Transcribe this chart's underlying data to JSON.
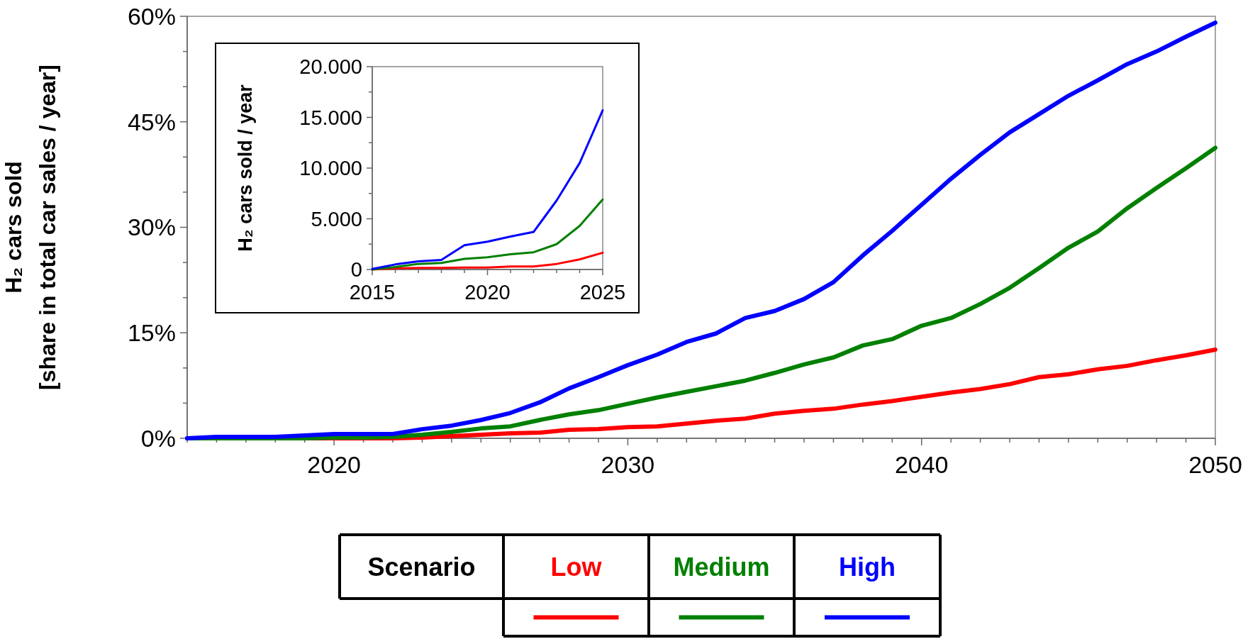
{
  "chart_data": [
    {
      "type": "line",
      "ylabel": "H₂ cars sold\n[share in total car sales / year]",
      "legend_title": "Scenario",
      "legend": "bottom",
      "x": [
        2015,
        2016,
        2017,
        2018,
        2019,
        2020,
        2021,
        2022,
        2023,
        2024,
        2025,
        2026,
        2027,
        2028,
        2029,
        2030,
        2031,
        2032,
        2033,
        2034,
        2035,
        2036,
        2037,
        2038,
        2039,
        2040,
        2041,
        2042,
        2043,
        2044,
        2045,
        2046,
        2047,
        2048,
        2049,
        2050
      ],
      "xlim": [
        2015,
        2050
      ],
      "xticks": [
        {
          "value": 2015,
          "label": null
        },
        {
          "value": 2016,
          "label": null
        },
        {
          "value": 2017,
          "label": null
        },
        {
          "value": 2018,
          "label": null
        },
        {
          "value": 2019,
          "label": null
        },
        2020,
        {
          "value": 2021,
          "label": null
        },
        {
          "value": 2022,
          "label": null
        },
        {
          "value": 2023,
          "label": null
        },
        {
          "value": 2024,
          "label": null
        },
        {
          "value": 2025,
          "label": null
        },
        {
          "value": 2026,
          "label": null
        },
        {
          "value": 2027,
          "label": null
        },
        {
          "value": 2028,
          "label": null
        },
        {
          "value": 2029,
          "label": null
        },
        2030,
        {
          "value": 2031,
          "label": null
        },
        {
          "value": 2032,
          "label": null
        },
        {
          "value": 2033,
          "label": null
        },
        {
          "value": 2034,
          "label": null
        },
        {
          "value": 2035,
          "label": null
        },
        {
          "value": 2036,
          "label": null
        },
        {
          "value": 2037,
          "label": null
        },
        {
          "value": 2038,
          "label": null
        },
        {
          "value": 2039,
          "label": null
        },
        2040,
        {
          "value": 2041,
          "label": null
        },
        {
          "value": 2042,
          "label": null
        },
        {
          "value": 2043,
          "label": null
        },
        {
          "value": 2044,
          "label": null
        },
        {
          "value": 2045,
          "label": null
        },
        {
          "value": 2046,
          "label": null
        },
        {
          "value": 2047,
          "label": null
        },
        {
          "value": 2048,
          "label": null
        },
        {
          "value": 2049,
          "label": null
        },
        2050
      ],
      "ylim": [
        0,
        60
      ],
      "yticks": [
        {
          "value": 0,
          "label": "0%"
        },
        {
          "value": 5,
          "label": null
        },
        {
          "value": 10,
          "label": null
        },
        {
          "value": 15,
          "label": "15%"
        },
        {
          "value": 20,
          "label": null
        },
        {
          "value": 25,
          "label": null
        },
        {
          "value": 30,
          "label": "30%"
        },
        {
          "value": 35,
          "label": null
        },
        {
          "value": 40,
          "label": null
        },
        {
          "value": 45,
          "label": "45%"
        },
        {
          "value": 50,
          "label": null
        },
        {
          "value": 55,
          "label": null
        },
        {
          "value": 60,
          "label": "60%"
        }
      ],
      "series": [
        {
          "name": "Low",
          "color": "#ff0000",
          "values": [
            null,
            null,
            null,
            null,
            0,
            0,
            0,
            0,
            0.1,
            0.3,
            0.5,
            0.7,
            0.8,
            1.2,
            1.3,
            1.6,
            1.7,
            2.1,
            2.5,
            2.8,
            3.5,
            3.9,
            4.2,
            4.8,
            5.3,
            5.9,
            6.5,
            7.0,
            7.7,
            8.7,
            9.1,
            9.8,
            10.3,
            11.1,
            11.8,
            12.6
          ]
        },
        {
          "name": "Medium",
          "color": "#008000",
          "values": [
            0,
            0,
            0,
            0,
            0,
            0.1,
            0.1,
            0.2,
            0.5,
            0.9,
            1.4,
            1.7,
            2.6,
            3.4,
            4.0,
            4.9,
            5.8,
            6.6,
            7.4,
            8.2,
            9.3,
            10.5,
            11.5,
            13.2,
            14.1,
            16.0,
            17.1,
            19.1,
            21.4,
            24.2,
            27.1,
            29.4,
            32.7,
            35.6,
            38.4,
            41.3
          ]
        },
        {
          "name": "High",
          "color": "#0000ff",
          "values": [
            0,
            0.2,
            0.2,
            0.2,
            0.4,
            0.6,
            0.6,
            0.6,
            1.3,
            1.8,
            2.6,
            3.6,
            5.1,
            7.1,
            8.7,
            10.4,
            11.9,
            13.7,
            14.9,
            17.1,
            18.1,
            19.8,
            22.2,
            26.0,
            29.5,
            33.2,
            36.9,
            40.3,
            43.5,
            46.1,
            48.7,
            50.9,
            53.2,
            55.0,
            57.1,
            59.1
          ]
        }
      ]
    },
    {
      "type": "line",
      "ylabel": "H₂ cars sold / year",
      "x": [
        2015,
        2016,
        2017,
        2018,
        2019,
        2020,
        2021,
        2022,
        2023,
        2024,
        2025
      ],
      "xlim": [
        2015,
        2025
      ],
      "xticks": [
        2015,
        {
          "value": 2016,
          "label": null
        },
        {
          "value": 2017,
          "label": null
        },
        {
          "value": 2018,
          "label": null
        },
        {
          "value": 2019,
          "label": null
        },
        2020,
        {
          "value": 2021,
          "label": null
        },
        {
          "value": 2022,
          "label": null
        },
        {
          "value": 2023,
          "label": null
        },
        {
          "value": 2024,
          "label": null
        },
        2025
      ],
      "ylim": [
        0,
        20000
      ],
      "yticks": [
        {
          "value": 0,
          "label": "0"
        },
        {
          "value": 2500,
          "label": null
        },
        {
          "value": 5000,
          "label": "5.000"
        },
        {
          "value": 7500,
          "label": null
        },
        {
          "value": 10000,
          "label": "10.000"
        },
        {
          "value": 12500,
          "label": null
        },
        {
          "value": 15000,
          "label": "15.000"
        },
        {
          "value": 17500,
          "label": null
        },
        {
          "value": 20000,
          "label": "20.000"
        }
      ],
      "series": [
        {
          "color": "#ff0000",
          "values": [
            0,
            100,
            150,
            150,
            200,
            200,
            300,
            300,
            550,
            1000,
            1650
          ]
        },
        {
          "color": "#008000",
          "values": [
            0,
            250,
            550,
            650,
            1050,
            1200,
            1500,
            1700,
            2500,
            4300,
            6900
          ]
        },
        {
          "color": "#0000ff",
          "values": [
            50,
            500,
            800,
            950,
            2400,
            2750,
            3250,
            3700,
            6800,
            10500,
            15700
          ]
        }
      ]
    }
  ]
}
